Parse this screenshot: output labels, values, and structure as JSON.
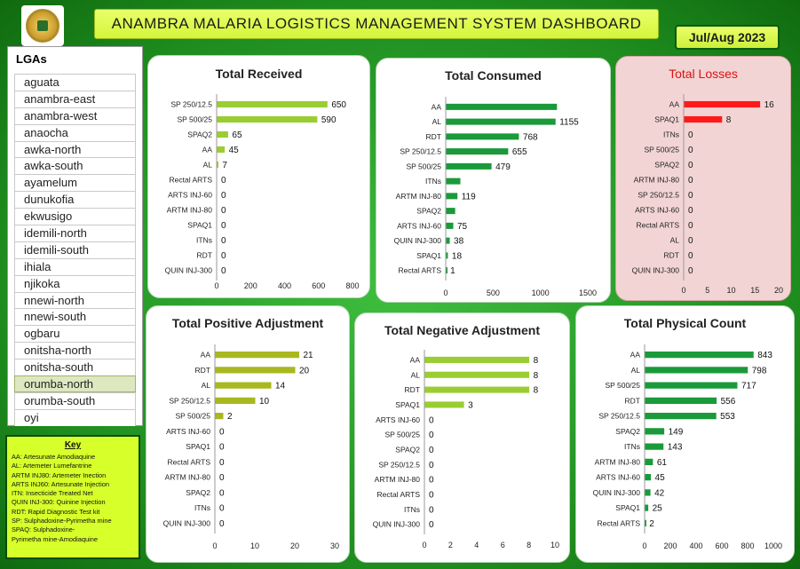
{
  "header": {
    "title": "ANAMBRA MALARIA LOGISTICS MANAGEMENT SYSTEM DASHBOARD",
    "period": "Jul/Aug 2023"
  },
  "lga_panel": {
    "title": "LGAs",
    "items": [
      "aguata",
      "anambra-east",
      "anambra-west",
      "anaocha",
      "awka-north",
      "awka-south",
      "ayamelum",
      "dunukofia",
      "ekwusigo",
      "idemili-north",
      "idemili-south",
      "ihiala",
      "njikoka",
      "nnewi-north",
      "nnewi-south",
      "ogbaru",
      "onitsha-north",
      "onitsha-south",
      "orumba-north",
      "orumba-south",
      "oyi"
    ],
    "selected": "orumba-north"
  },
  "key": {
    "title": "Key",
    "lines": [
      "AA: Artesunate Amodiaquine",
      "AL: Artemeter Lumefantrine",
      "ARTM INJ80: Artemeter Inection",
      "ARTS INJ60: Artesunate Injection",
      "ITN: Insecticide Treated Net",
      "QUIN INJ-300: Quinine Injection",
      "RDT: Rapid Diagnostic Test kit",
      "SP: Sulphadoxine-Pyrimetha mine",
      "SPAQ: Sulphadoxine-",
      "Pyrimetha mine-Amodiaquine"
    ]
  },
  "colors": {
    "received": "#9acd32",
    "consumed": "#1a9a3a",
    "losses": "#ff1a1a",
    "positive": "#a8b820",
    "negative": "#9acd32",
    "physical": "#1a9a3a"
  },
  "chart_data": [
    {
      "id": "received",
      "type": "bar",
      "orientation": "horizontal",
      "title": "Total Received",
      "categories": [
        "SP 250/12.5",
        "SP 500/25",
        "SPAQ2",
        "AA",
        "AL",
        "Rectal ARTS",
        "ARTS INJ-60",
        "ARTM INJ-80",
        "SPAQ1",
        "ITNs",
        "RDT",
        "QUIN INJ-300"
      ],
      "values": [
        650,
        590,
        65,
        45,
        7,
        0,
        0,
        0,
        0,
        0,
        0,
        0
      ],
      "xlim": [
        0,
        800
      ],
      "ticks": [
        "0",
        "200",
        "400",
        "600",
        "800"
      ]
    },
    {
      "id": "consumed",
      "type": "bar",
      "orientation": "horizontal",
      "title": "Total Consumed",
      "categories": [
        "AA",
        "AL",
        "RDT",
        "SP 250/12.5",
        "SP 500/25",
        "ITNs",
        "ARTM INJ-80",
        "SPAQ2",
        "ARTS INJ-60",
        "QUIN INJ-300",
        "SPAQ1",
        "Rectal ARTS"
      ],
      "values": [
        1170,
        1155,
        768,
        655,
        479,
        150,
        119,
        95,
        75,
        38,
        18,
        1
      ],
      "labels": [
        "",
        "1155",
        "768",
        "655",
        "479",
        "",
        "119",
        "",
        "75",
        "38",
        "18",
        "1"
      ],
      "xlim": [
        0,
        1500
      ],
      "ticks": [
        "0",
        "500",
        "1000",
        "1500"
      ]
    },
    {
      "id": "losses",
      "type": "bar",
      "orientation": "horizontal",
      "title": "Total Losses",
      "categories": [
        "AA",
        "SPAQ1",
        "ITNs",
        "SP 500/25",
        "SPAQ2",
        "ARTM INJ-80",
        "SP 250/12.5",
        "ARTS INJ-60",
        "Rectal ARTS",
        "AL",
        "RDT",
        "QUIN INJ-300"
      ],
      "values": [
        16,
        8,
        0,
        0,
        0,
        0,
        0,
        0,
        0,
        0,
        0,
        0
      ],
      "xlim": [
        0,
        20
      ],
      "ticks": [
        "0",
        "5",
        "10",
        "15",
        "20"
      ]
    },
    {
      "id": "positive",
      "type": "bar",
      "orientation": "horizontal",
      "title": "Total Positive Adjustment",
      "categories": [
        "AA",
        "RDT",
        "AL",
        "SP 250/12.5",
        "SP 500/25",
        "ARTS INJ-60",
        "SPAQ1",
        "Rectal ARTS",
        "ARTM INJ-80",
        "SPAQ2",
        "ITNs",
        "QUIN INJ-300"
      ],
      "values": [
        21,
        20,
        14,
        10,
        2,
        0,
        0,
        0,
        0,
        0,
        0,
        0
      ],
      "xlim": [
        0,
        30
      ],
      "ticks": [
        "0",
        "10",
        "20",
        "30"
      ]
    },
    {
      "id": "negative",
      "type": "bar",
      "orientation": "horizontal",
      "title": "Total Negative Adjustment",
      "categories": [
        "AA",
        "AL",
        "RDT",
        "SPAQ1",
        "ARTS INJ-60",
        "SP 500/25",
        "SPAQ2",
        "SP 250/12.5",
        "ARTM INJ-80",
        "Rectal ARTS",
        "ITNs",
        "QUIN INJ-300"
      ],
      "values": [
        8,
        8,
        8,
        3,
        0,
        0,
        0,
        0,
        0,
        0,
        0,
        0
      ],
      "xlim": [
        0,
        10
      ],
      "ticks": [
        "0",
        "2",
        "4",
        "6",
        "8",
        "10"
      ]
    },
    {
      "id": "physical",
      "type": "bar",
      "orientation": "horizontal",
      "title": "Total Physical Count",
      "categories": [
        "AA",
        "AL",
        "SP 500/25",
        "RDT",
        "SP 250/12.5",
        "SPAQ2",
        "ITNs",
        "ARTM INJ-80",
        "ARTS INJ-60",
        "QUIN INJ-300",
        "SPAQ1",
        "Rectal ARTS"
      ],
      "values": [
        843,
        798,
        717,
        556,
        553,
        149,
        143,
        61,
        45,
        42,
        25,
        2
      ],
      "xlim": [
        0,
        1000
      ],
      "ticks": [
        "0",
        "200",
        "400",
        "600",
        "800",
        "1000"
      ]
    }
  ]
}
